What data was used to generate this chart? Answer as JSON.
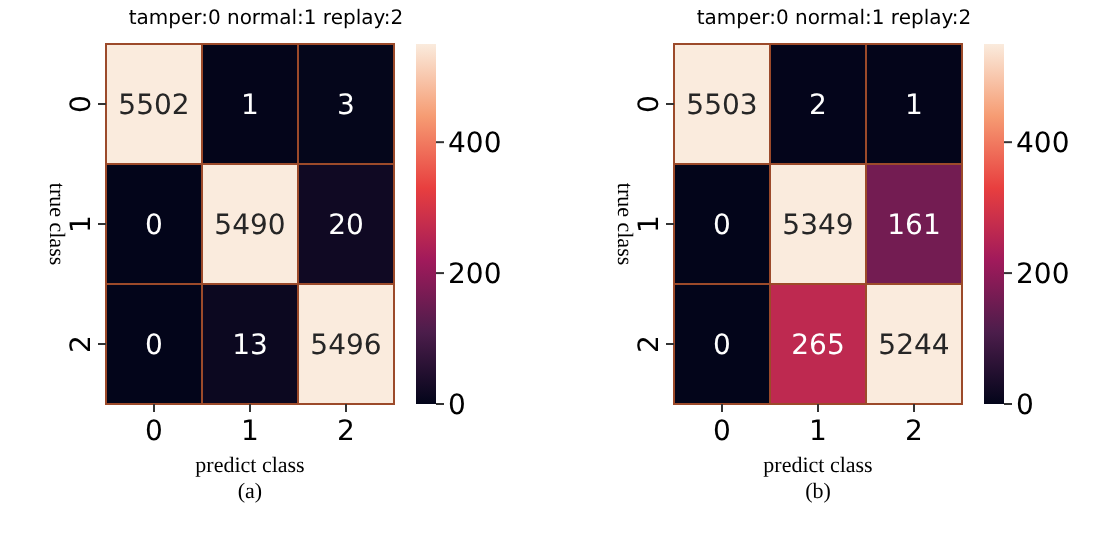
{
  "chart_data": [
    {
      "type": "heatmap",
      "title": "tamper:0  normal:1  replay:2",
      "xlabel": "predict class",
      "ylabel": "true class",
      "categories": [
        "0",
        "1",
        "2"
      ],
      "y_categories": [
        "0",
        "1",
        "2"
      ],
      "cells": [
        [
          5502,
          1,
          3
        ],
        [
          0,
          5490,
          20
        ],
        [
          0,
          13,
          5496
        ]
      ],
      "clim": [
        0,
        550
      ],
      "cticks": [
        0,
        200,
        400
      ],
      "data_labels": true,
      "annotations": [
        "(a)"
      ]
    },
    {
      "type": "heatmap",
      "title": "tamper:0  normal:1  replay:2",
      "xlabel": "predict class",
      "ylabel": "true class",
      "categories": [
        "0",
        "1",
        "2"
      ],
      "y_categories": [
        "0",
        "1",
        "2"
      ],
      "cells": [
        [
          5503,
          2,
          1
        ],
        [
          0,
          5349,
          161
        ],
        [
          0,
          265,
          5244
        ]
      ],
      "clim": [
        0,
        550
      ],
      "cticks": [
        0,
        200,
        400
      ],
      "data_labels": true,
      "annotations": [
        "(b)"
      ]
    }
  ]
}
